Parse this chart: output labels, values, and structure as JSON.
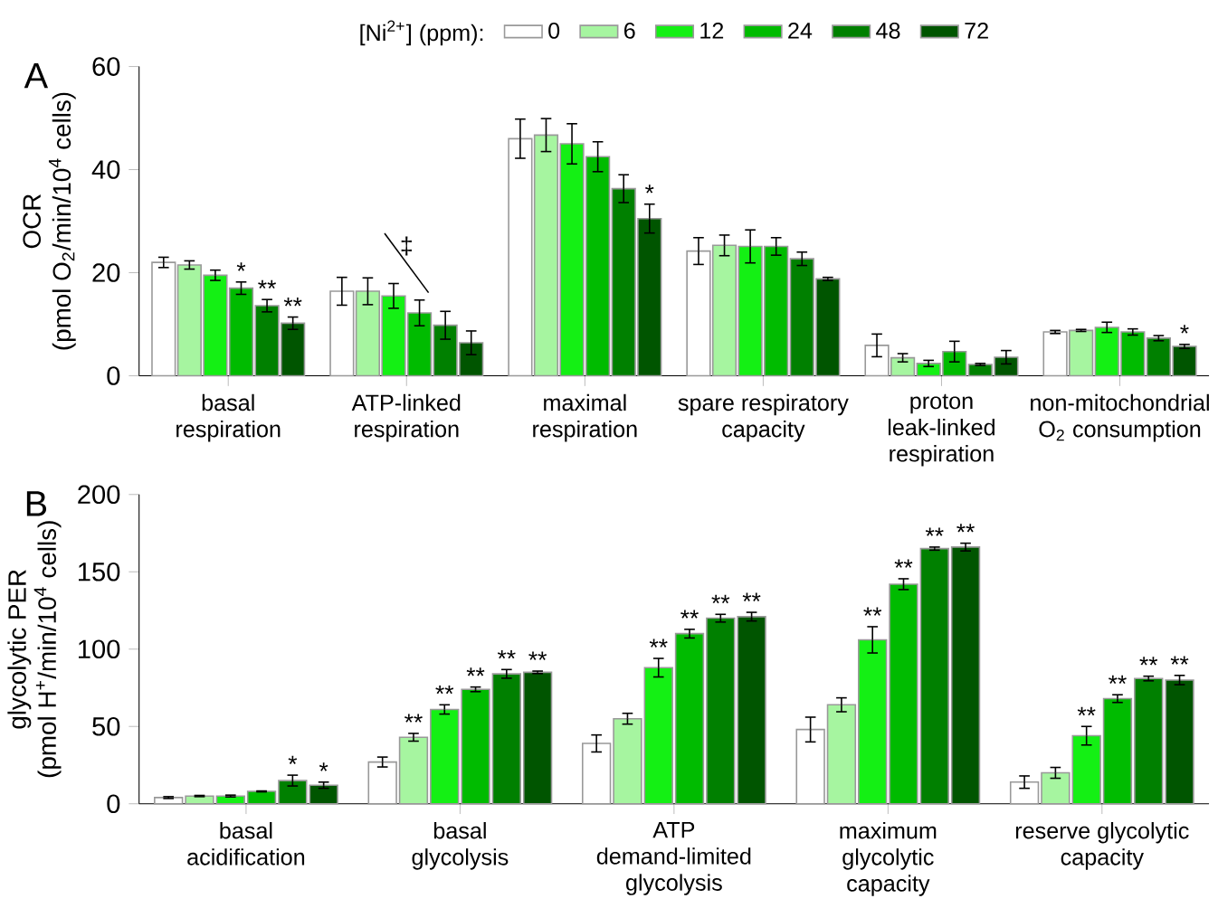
{
  "chart_data": [
    {
      "type": "bar",
      "title": "A",
      "ylabel": "OCR\n(pmol O$_{2}$/min/10$^{4}$ cells)",
      "legend_title": "[Ni$^{2+}$] (ppm):",
      "legend": "top",
      "categories": [
        "basal\nrespiration",
        "ATP-linked\nrespiration",
        "maximal\nrespiration",
        "spare respiratory\ncapacity",
        "proton\nleak-linked\nrespiration",
        "non-mitochondrial\nO$_{2}$ consumption"
      ],
      "ylim": [
        0,
        60
      ],
      "yticks": [
        0,
        20,
        40,
        60
      ],
      "series": [
        {
          "name": "0",
          "color": "#ffffff",
          "values": [
            22,
            16.4,
            46,
            24.2,
            5.9,
            8.5
          ],
          "errors": [
            1,
            2.7,
            3.8,
            2.6,
            2.2,
            0.3
          ]
        },
        {
          "name": "6",
          "color": "#a6f5a0",
          "values": [
            21.5,
            16.4,
            46.7,
            25.3,
            3.5,
            8.8
          ],
          "errors": [
            0.8,
            2.6,
            3.2,
            2,
            0.8,
            0.2
          ]
        },
        {
          "name": "12",
          "color": "#14f014",
          "values": [
            19.5,
            15.5,
            45,
            25.1,
            2.4,
            9.4
          ],
          "errors": [
            1,
            2.4,
            3.9,
            3.2,
            0.6,
            1
          ]
        },
        {
          "name": "24",
          "color": "#00bb00",
          "values": [
            17,
            12.2,
            42.5,
            25.1,
            4.7,
            8.5
          ],
          "errors": [
            1.2,
            2.5,
            2.9,
            1.7,
            2,
            0.6
          ],
          "value_labels": [
            "*",
            null,
            null,
            null,
            null,
            null
          ]
        },
        {
          "name": "48",
          "color": "#008000",
          "values": [
            13.6,
            9.8,
            36.3,
            22.7,
            2.2,
            7.3
          ],
          "errors": [
            1.2,
            2.7,
            2.7,
            1.3,
            0.2,
            0.5
          ],
          "value_labels": [
            "**",
            null,
            null,
            null,
            null,
            null
          ]
        },
        {
          "name": "72",
          "color": "#005500",
          "values": [
            10.2,
            6.4,
            30.5,
            18.8,
            3.6,
            5.7
          ],
          "errors": [
            1.2,
            2.3,
            2.8,
            0.3,
            1.3,
            0.4
          ],
          "value_labels": [
            "**",
            null,
            "*",
            null,
            null,
            "*"
          ]
        }
      ],
      "annotations": [
        "‡"
      ]
    },
    {
      "type": "bar",
      "title": "B",
      "ylabel": "glycolytic PER\n(pmol H$^{+}$/min/10$^{4}$ cells)",
      "categories": [
        "basal\nacidification",
        "basal\nglycolysis",
        "ATP\ndemand-limited\nglycolysis",
        "maximum\nglycolytic\ncapacity",
        "reserve glycolytic\ncapacity"
      ],
      "ylim": [
        0,
        200
      ],
      "yticks": [
        0,
        50,
        100,
        150,
        200
      ],
      "series": [
        {
          "color": "#ffffff",
          "values": [
            4,
            27,
            39,
            48,
            14
          ],
          "errors": [
            0.6,
            3.2,
            5.5,
            8,
            4
          ]
        },
        {
          "color": "#a6f5a0",
          "values": [
            5,
            43,
            55,
            64,
            20
          ],
          "errors": [
            0.4,
            2.5,
            3.5,
            4.5,
            3.5
          ],
          "value_labels": [
            null,
            "**",
            null,
            null,
            null
          ]
        },
        {
          "color": "#14f014",
          "values": [
            5,
            61,
            88,
            106,
            44
          ],
          "errors": [
            0.6,
            3,
            6,
            8.5,
            6
          ],
          "value_labels": [
            null,
            "**",
            "**",
            "**",
            "**"
          ]
        },
        {
          "color": "#00bb00",
          "values": [
            8,
            74,
            110,
            142,
            68
          ],
          "errors": [
            0.3,
            1.5,
            2.8,
            3.5,
            2.5
          ],
          "value_labels": [
            null,
            "**",
            "**",
            "**",
            "**"
          ]
        },
        {
          "color": "#008000",
          "values": [
            15,
            84,
            120,
            165,
            81
          ],
          "errors": [
            3.5,
            2.8,
            2.5,
            1,
            1.5
          ],
          "value_labels": [
            "*",
            "**",
            "**",
            "**",
            "**"
          ]
        },
        {
          "color": "#005500",
          "values": [
            12,
            85,
            121,
            166,
            80
          ],
          "errors": [
            2,
            0.8,
            2.8,
            2.5,
            3
          ],
          "value_labels": [
            "*",
            "**",
            "**",
            "**",
            "**"
          ]
        }
      ]
    }
  ]
}
